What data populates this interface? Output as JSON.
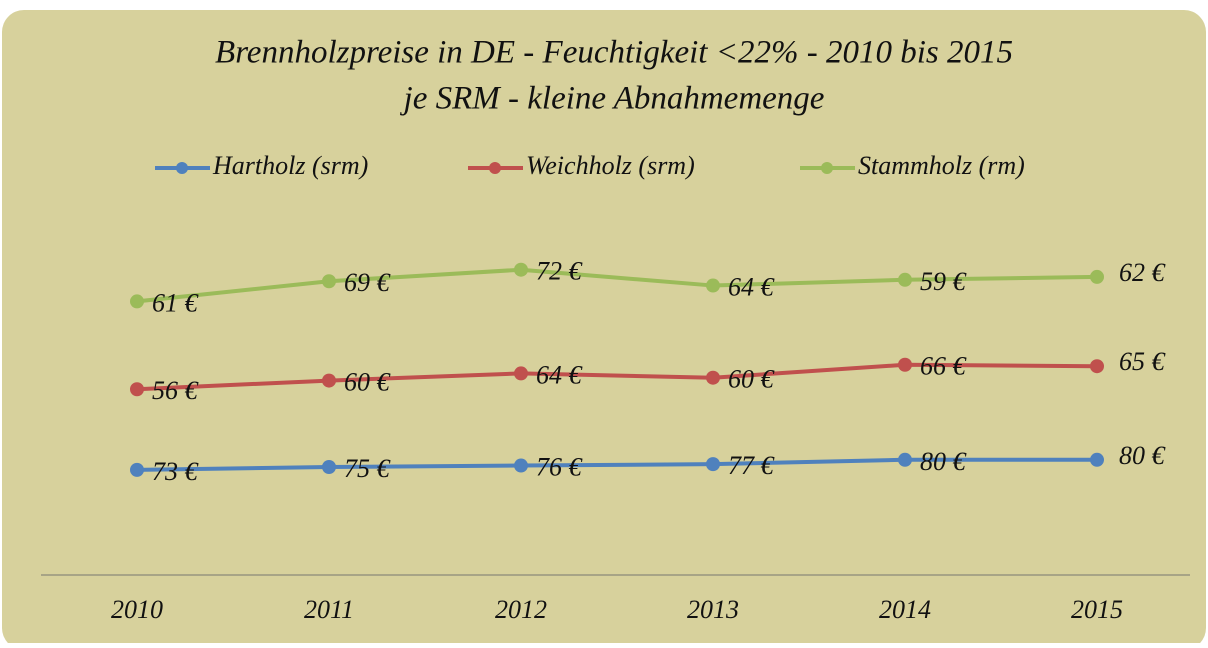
{
  "chart_data": {
    "type": "line",
    "stacked": true,
    "title": "Brennholzpreise in DE - Feuchtigkeit <22% - 2010 bis 2015",
    "subtitle": "je SRM - kleine Abnahmemenge",
    "categories": [
      "2010",
      "2011",
      "2012",
      "2013",
      "2014",
      "2015"
    ],
    "series": [
      {
        "name": "Hartholz (srm)",
        "color": "#4f81bd",
        "values": [
          73,
          75,
          76,
          77,
          80,
          80
        ],
        "value_labels": [
          "73 €",
          "75 €",
          "76 €",
          "77 €",
          "80 €",
          "80 €"
        ]
      },
      {
        "name": "Weichholz (srm)",
        "color": "#c0504d",
        "values": [
          56,
          60,
          64,
          60,
          66,
          65
        ],
        "value_labels": [
          "56 €",
          "60 €",
          "64 €",
          "60 €",
          "66 €",
          "65 €"
        ]
      },
      {
        "name": "Stammholz (rm)",
        "color": "#9bbb59",
        "values": [
          61,
          69,
          72,
          64,
          59,
          62
        ],
        "value_labels": [
          "61 €",
          "69 €",
          "72 €",
          "64 €",
          "59 €",
          "62 €"
        ]
      }
    ],
    "ylim": [
      0,
      250
    ],
    "legend": "top"
  }
}
